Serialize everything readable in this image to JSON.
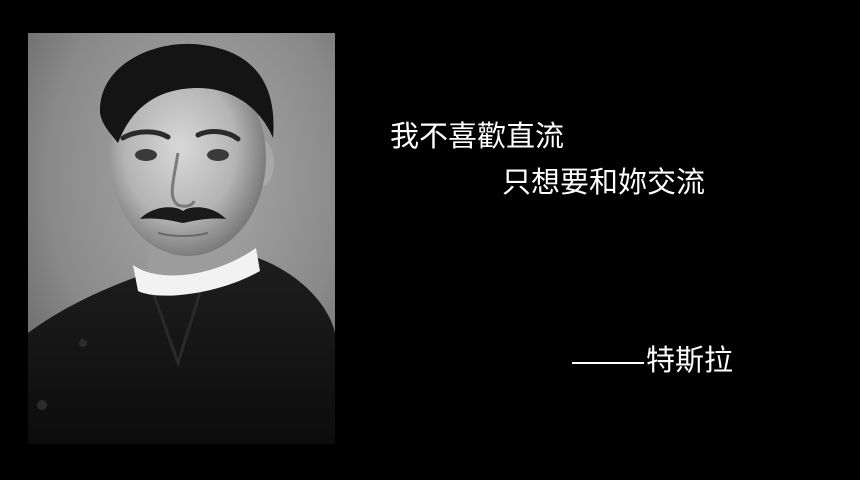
{
  "slide": {
    "background_color": "#000000",
    "text_color": "#ffffff",
    "portrait": {
      "description_icon": "portrait-photo"
    },
    "quote": {
      "line1": "我不喜歡直流",
      "line2": "只想要和妳交流"
    },
    "attribution": {
      "name": "特斯拉"
    }
  }
}
